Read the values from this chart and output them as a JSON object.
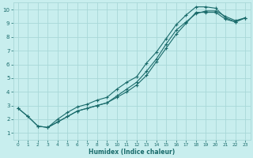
{
  "xlabel": "Humidex (Indice chaleur)",
  "background_color": "#c8eeee",
  "grid_color": "#a8d8d8",
  "line_color": "#1a6b6b",
  "xlim": [
    -0.5,
    23.5
  ],
  "ylim": [
    0.5,
    10.5
  ],
  "yticks": [
    1,
    2,
    3,
    4,
    5,
    6,
    7,
    8,
    9,
    10
  ],
  "xticks": [
    0,
    1,
    2,
    3,
    4,
    5,
    6,
    7,
    8,
    9,
    10,
    11,
    12,
    13,
    14,
    15,
    16,
    17,
    18,
    19,
    20,
    21,
    22,
    23
  ],
  "line1_x": [
    0,
    1,
    2,
    3,
    4,
    5,
    6,
    7,
    8,
    9,
    10,
    11,
    12,
    13,
    14,
    15,
    16,
    17,
    18,
    19,
    20,
    21,
    22,
    23
  ],
  "line1_y": [
    2.8,
    2.2,
    1.5,
    1.4,
    2.0,
    2.5,
    2.9,
    3.1,
    3.4,
    3.6,
    4.2,
    4.7,
    5.1,
    6.1,
    6.9,
    7.9,
    8.9,
    9.6,
    10.2,
    10.2,
    10.1,
    9.4,
    9.1,
    9.4
  ],
  "line2_x": [
    0,
    1,
    2,
    3,
    4,
    5,
    6,
    7,
    8,
    9,
    10,
    11,
    12,
    13,
    14,
    15,
    16,
    17,
    18,
    19,
    20,
    21,
    22,
    23
  ],
  "line2_y": [
    2.8,
    2.2,
    1.5,
    1.4,
    1.8,
    2.2,
    2.6,
    2.8,
    3.0,
    3.2,
    3.7,
    4.2,
    4.7,
    5.5,
    6.4,
    7.5,
    8.5,
    9.1,
    9.7,
    9.9,
    9.9,
    9.5,
    9.2,
    9.4
  ],
  "line3_x": [
    3,
    4,
    5,
    6,
    7,
    8,
    9,
    10,
    11,
    12,
    13,
    14,
    15,
    16,
    17,
    18,
    19,
    20,
    21,
    22,
    23
  ],
  "line3_y": [
    1.4,
    1.8,
    2.2,
    2.6,
    2.8,
    3.0,
    3.2,
    3.6,
    4.0,
    4.5,
    5.2,
    6.2,
    7.2,
    8.2,
    9.0,
    9.8,
    9.8,
    9.8,
    9.3,
    9.1,
    9.4
  ]
}
